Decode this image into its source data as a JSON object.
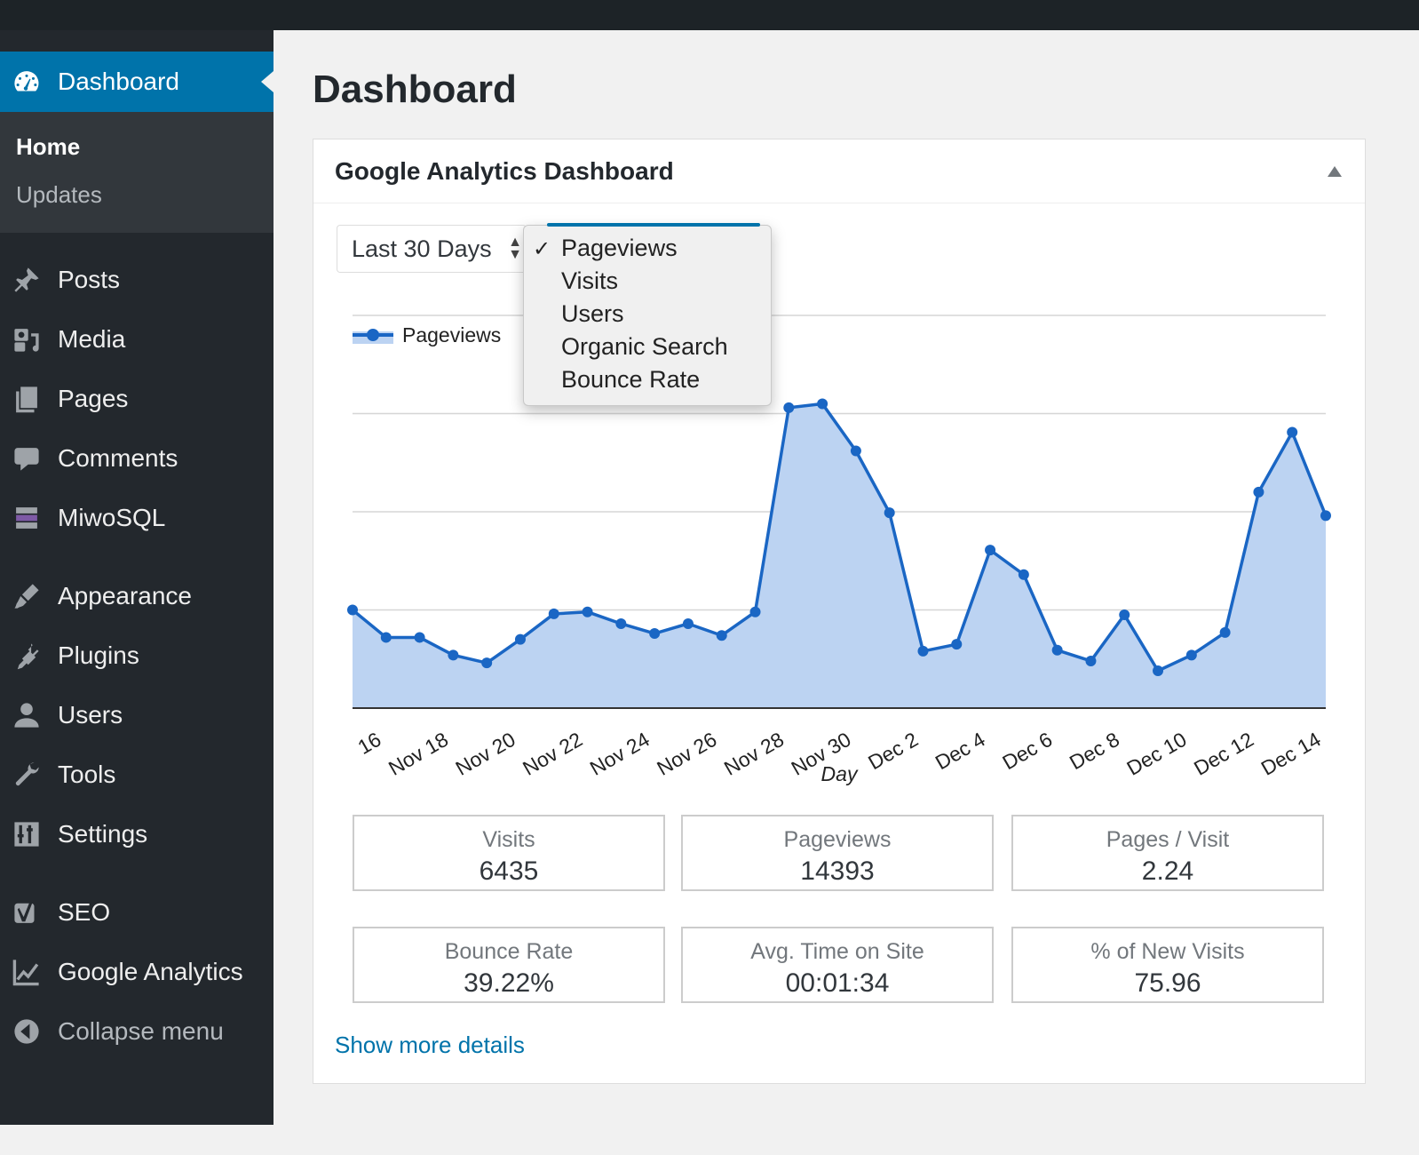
{
  "sidebar": {
    "dashboard": {
      "label": "Dashboard",
      "icon": "dashboard-icon"
    },
    "submenu": [
      {
        "label": "Home",
        "current": true
      },
      {
        "label": "Updates",
        "current": false
      }
    ],
    "items": [
      {
        "label": "Posts",
        "icon": "pin-icon"
      },
      {
        "label": "Media",
        "icon": "media-icon"
      },
      {
        "label": "Pages",
        "icon": "pages-icon"
      },
      {
        "label": "Comments",
        "icon": "comment-icon"
      },
      {
        "label": "MiwoSQL",
        "icon": "database-icon"
      },
      {
        "label": "Appearance",
        "icon": "brush-icon"
      },
      {
        "label": "Plugins",
        "icon": "plug-icon"
      },
      {
        "label": "Users",
        "icon": "user-icon"
      },
      {
        "label": "Tools",
        "icon": "wrench-icon"
      },
      {
        "label": "Settings",
        "icon": "sliders-icon"
      },
      {
        "label": "SEO",
        "icon": "seo-icon"
      },
      {
        "label": "Google Analytics",
        "icon": "analytics-icon"
      },
      {
        "label": "Collapse menu",
        "icon": "collapse-icon"
      }
    ]
  },
  "main": {
    "title": "Dashboard",
    "widget": {
      "title": "Google Analytics Dashboard",
      "range_select": "Last 30 Days",
      "metric_dropdown": {
        "options": [
          "Pageviews",
          "Visits",
          "Users",
          "Organic Search",
          "Bounce Rate"
        ],
        "selected": "Pageviews"
      },
      "stats": [
        {
          "label": "Visits",
          "value": "6435"
        },
        {
          "label": "Pageviews",
          "value": "14393"
        },
        {
          "label": "Pages / Visit",
          "value": "2.24"
        },
        {
          "label": "Bounce Rate",
          "value": "39.22%"
        },
        {
          "label": "Avg. Time on Site",
          "value": "00:01:34"
        },
        {
          "label": "% of New Visits",
          "value": "75.96"
        }
      ],
      "more_link": "Show more details"
    }
  },
  "colors": {
    "accent": "#0073aa",
    "sidebar": "#23282d",
    "series": "#1a66c4",
    "area": "#bcd3f2"
  },
  "chart_data": {
    "type": "area",
    "xlabel": "Day",
    "ylabel": "",
    "legend": "top-left",
    "grid": true,
    "ylim": [
      0,
      4
    ],
    "x": [
      "16",
      "17",
      "Nov 18",
      "19",
      "Nov 20",
      "21",
      "Nov 22",
      "23",
      "Nov 24",
      "25",
      "Nov 26",
      "27",
      "Nov 28",
      "29",
      "Nov 30",
      "Dec 1",
      "Dec 2",
      "3",
      "Dec 4",
      "5",
      "Dec 6",
      "7",
      "Dec 8",
      "9",
      "Dec 10",
      "11",
      "Dec 12",
      "13",
      "Dec 14",
      "15"
    ],
    "tick_labels": [
      "16",
      "Nov 18",
      "Nov 20",
      "Nov 22",
      "Nov 24",
      "Nov 26",
      "Nov 28",
      "Nov 30",
      "Dec 2",
      "Dec 4",
      "Dec 6",
      "Dec 8",
      "Dec 10",
      "Dec 12",
      "Dec 14"
    ],
    "series": [
      {
        "name": "Pageviews",
        "values": [
          1.0,
          0.72,
          0.72,
          0.54,
          0.46,
          0.7,
          0.96,
          0.98,
          0.86,
          0.76,
          0.86,
          0.74,
          0.98,
          3.06,
          3.1,
          2.62,
          1.99,
          0.58,
          0.65,
          1.61,
          1.36,
          0.59,
          0.48,
          0.95,
          0.38,
          0.54,
          0.77,
          2.2,
          2.81,
          1.96
        ]
      }
    ]
  }
}
